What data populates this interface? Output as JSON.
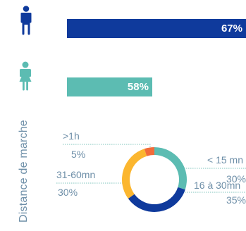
{
  "colors": {
    "male": "#0f3a9c",
    "female": "#5cbcb2",
    "label": "#6e8fa8",
    "leader": "#7fc4bd"
  },
  "icons": {
    "male": "person-male-icon",
    "female": "person-female-icon"
  },
  "gender_bars": [
    {
      "icon": "person-male-icon",
      "label": "67%",
      "value": 67
    },
    {
      "icon": "person-female-icon",
      "label": "58%",
      "value": 58
    }
  ],
  "side_label": "Distance de marche",
  "chart_data": {
    "type": "pie",
    "categories": [
      "< 15 mn",
      "16 à 30mn",
      "31-60mn",
      ">1h"
    ],
    "values": [
      30,
      35,
      30,
      5
    ],
    "labels": [
      "30%",
      "35%",
      "30%",
      "5%"
    ],
    "colors": [
      "#5cbcb2",
      "#0f3a9c",
      "#fbb62f",
      "#f26b3a"
    ],
    "legend": "none"
  }
}
